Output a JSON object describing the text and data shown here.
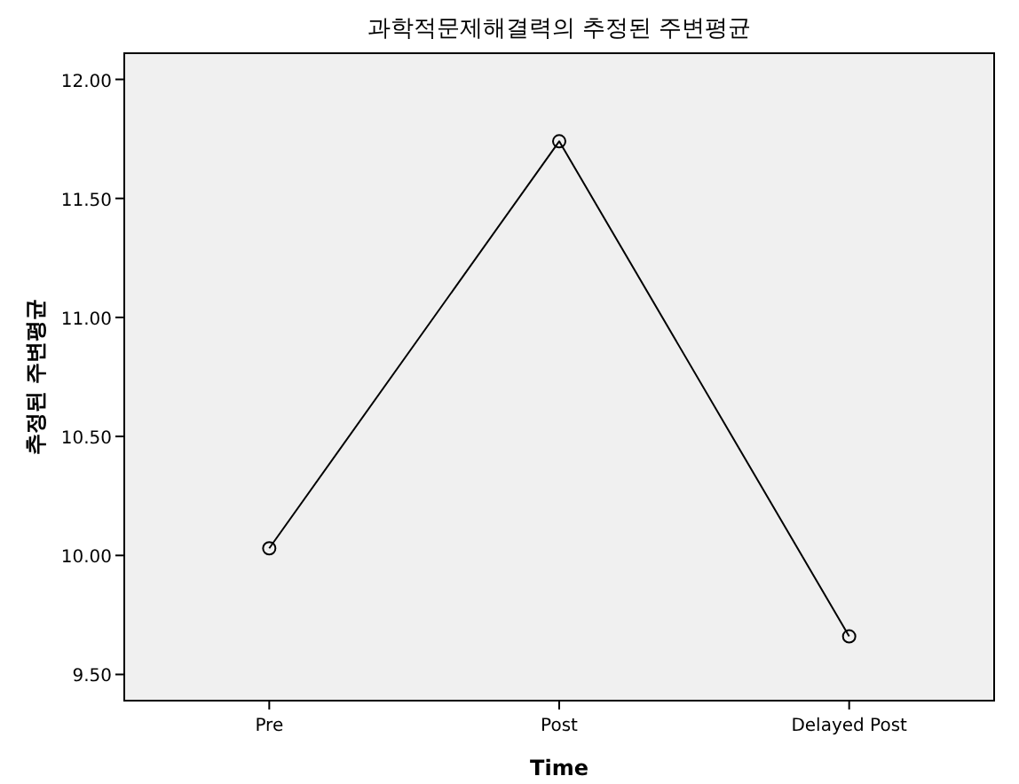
{
  "chart_data": {
    "type": "line",
    "title": "과학적문제해결력의 추정된 주변평균",
    "xlabel": "Time",
    "ylabel": "추정된 주변평균",
    "categories": [
      "Pre",
      "Post",
      "Delayed Post"
    ],
    "values": [
      10.03,
      11.74,
      9.66
    ],
    "color": "#000000",
    "marker": "circle",
    "ylim": [
      9.39,
      12.11
    ],
    "yticks": [
      {
        "value": 9.5,
        "label": "9.50"
      },
      {
        "value": 10,
        "label": "10.00"
      },
      {
        "value": 10.5,
        "label": "10.50"
      },
      {
        "value": 11,
        "label": "11.00"
      },
      {
        "value": 11.5,
        "label": "11.50"
      },
      {
        "value": 12,
        "label": "12.00"
      }
    ]
  }
}
